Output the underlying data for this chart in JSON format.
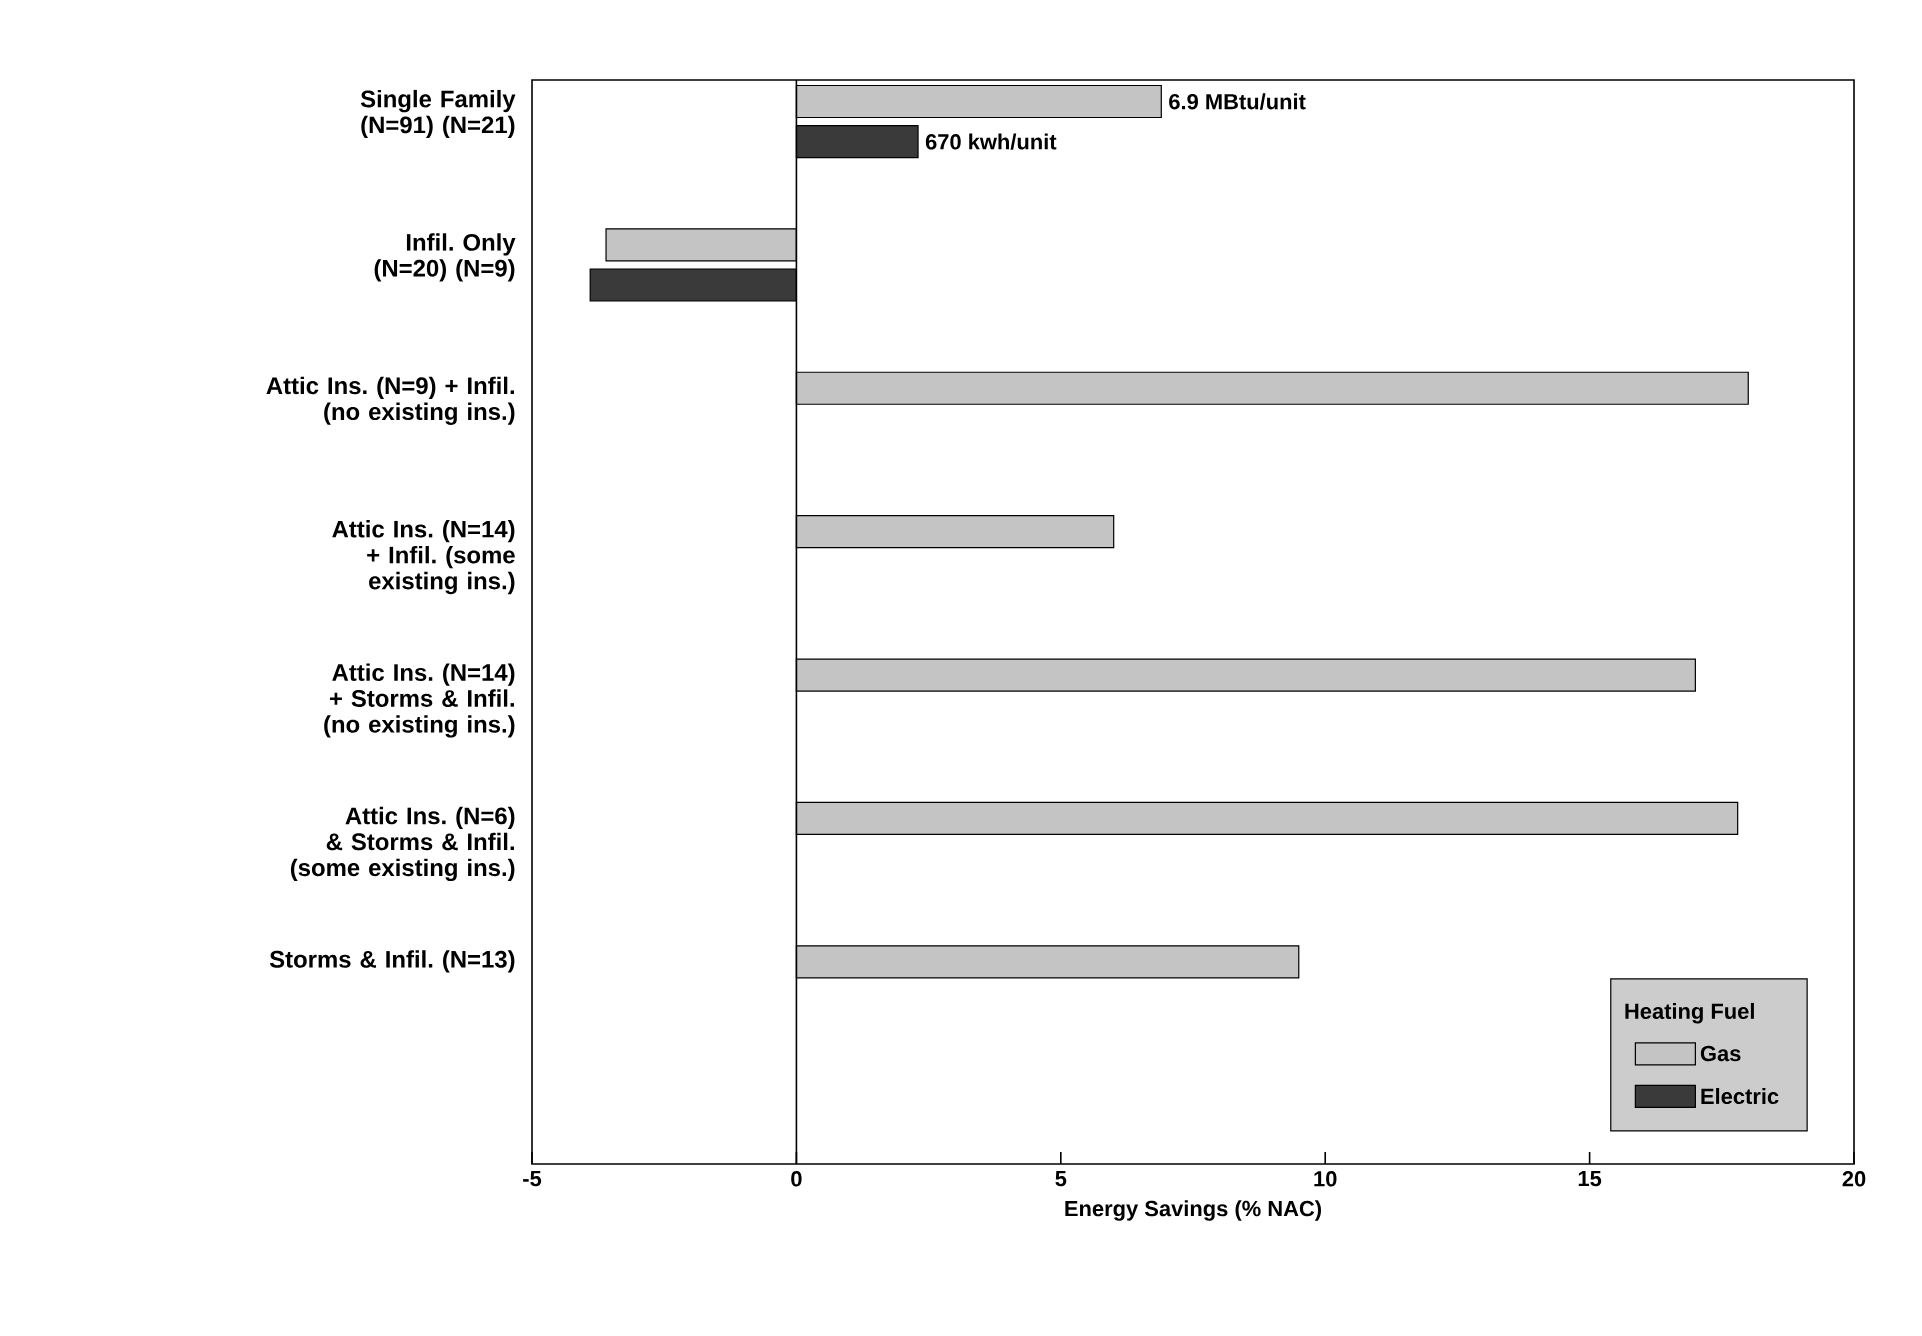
{
  "chart_data": {
    "type": "bar",
    "orientation": "horizontal",
    "xlabel": "Energy Savings (% NAC)",
    "legend_title": "Heating Fuel",
    "legend": "bottom right",
    "categories": [
      "Single Family (N=91) (N=21)",
      "Infil. Only (N=20) (N=9)",
      "Attic Ins. (N=9) + Infil. (no existing ins.)",
      "Attic Ins. (N=14) + Infil. (some existing ins.)",
      "Attic Ins. (N=14) + Storms & Infil. (no existing ins.)",
      "Attic Ins. (N=6) & Storms & Infil. (some existing ins.)",
      "Storms & Infil. (N=13)"
    ],
    "series": [
      {
        "name": "Gas",
        "color": "#c4c4c4",
        "values": [
          6.9,
          -3.6,
          18.0,
          6.0,
          17.0,
          17.8,
          9.5
        ]
      },
      {
        "name": "Electric",
        "color": "#3a3a3a",
        "values": [
          2.3,
          -3.9,
          null,
          null,
          null,
          null,
          null
        ]
      }
    ],
    "xlim": [
      -5,
      20
    ],
    "xticks": [
      -5,
      0,
      5,
      10,
      15,
      20
    ],
    "ref_lines": [
      {
        "axis": "x",
        "value": 0
      }
    ],
    "annotations": [
      {
        "text": "6.9 MBtu/unit",
        "x": 6.9,
        "y": "Single Family (N=91) (N=21)"
      },
      {
        "text": "670 kwh/unit",
        "x": 2.3,
        "y": "Single Family (N=91) (N=21)"
      }
    ]
  }
}
